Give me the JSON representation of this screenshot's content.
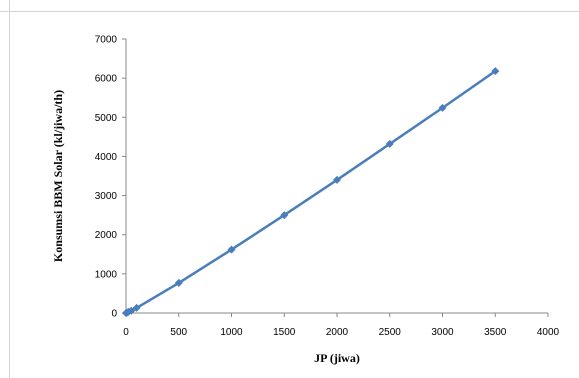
{
  "chart_data": {
    "type": "line",
    "title": "",
    "xlabel": "JP (jiwa)",
    "ylabel": "Konsumsi BBM Solar (kl/jiwa/th)",
    "xlim": [
      0,
      4000
    ],
    "ylim": [
      0,
      7000
    ],
    "x_ticks": [
      0,
      500,
      1000,
      1500,
      2000,
      2500,
      3000,
      3500,
      4000
    ],
    "y_ticks": [
      0,
      1000,
      2000,
      3000,
      4000,
      5000,
      6000,
      7000
    ],
    "grid": false,
    "legend": "none",
    "color": "#4a7ebb",
    "series": [
      {
        "x": [
          0,
          10,
          25,
          50,
          100,
          500,
          1000,
          1500,
          2000,
          2500,
          3000,
          3500
        ],
        "y": [
          0,
          10,
          30,
          60,
          130,
          770,
          1620,
          2500,
          3400,
          4320,
          5240,
          6180
        ]
      }
    ]
  }
}
